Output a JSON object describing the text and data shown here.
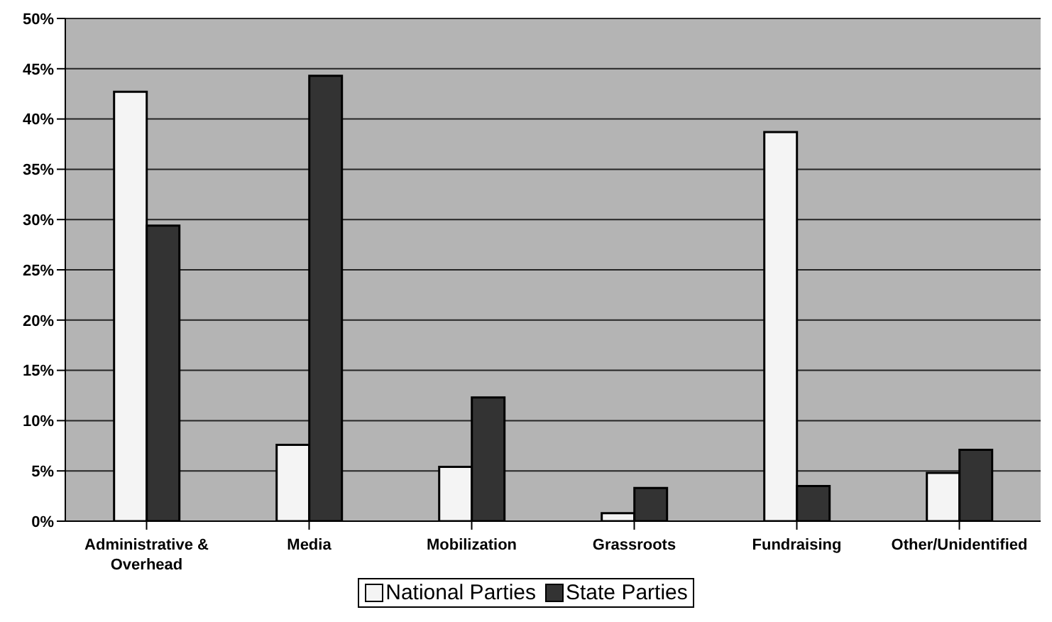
{
  "chart_data": {
    "type": "bar",
    "categories": [
      "Administrative & Overhead",
      "Media",
      "Mobilization",
      "Grassroots",
      "Fundraising",
      "Other/Unidentified"
    ],
    "series": [
      {
        "name": "National Parties",
        "color": "#f4f4f4",
        "values": [
          42.7,
          7.6,
          5.4,
          0.8,
          38.7,
          4.8
        ]
      },
      {
        "name": "State Parties",
        "color": "#333333",
        "values": [
          29.4,
          44.3,
          12.3,
          3.3,
          3.5,
          7.1
        ]
      }
    ],
    "ylim": [
      0,
      50
    ],
    "yticks": [
      {
        "value": 0,
        "label": "0%"
      },
      {
        "value": 5,
        "label": "5%"
      },
      {
        "value": 10,
        "label": "10%"
      },
      {
        "value": 15,
        "label": "15%"
      },
      {
        "value": 20,
        "label": "20%"
      },
      {
        "value": 25,
        "label": "25%"
      },
      {
        "value": 30,
        "label": "30%"
      },
      {
        "value": 35,
        "label": "35%"
      },
      {
        "value": 40,
        "label": "40%"
      },
      {
        "value": 45,
        "label": "45%"
      },
      {
        "value": 50,
        "label": "50%"
      }
    ],
    "grid": "y",
    "legend": "bottom"
  }
}
